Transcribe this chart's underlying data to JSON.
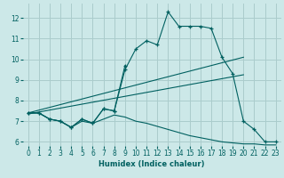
{
  "xlabel": "Humidex (Indice chaleur)",
  "bg_color": "#cce8e8",
  "grid_color": "#aacccc",
  "line_color": "#006060",
  "xlim": [
    -0.5,
    23.5
  ],
  "ylim": [
    5.8,
    12.7
  ],
  "xticks": [
    0,
    1,
    2,
    3,
    4,
    5,
    6,
    7,
    8,
    9,
    10,
    11,
    12,
    13,
    14,
    15,
    16,
    17,
    18,
    19,
    20,
    21,
    22,
    23
  ],
  "yticks": [
    6,
    7,
    8,
    9,
    10,
    11,
    12
  ],
  "curve1_x": [
    0,
    1,
    2,
    3,
    4,
    5,
    6,
    7,
    8,
    9,
    10,
    11,
    12,
    13,
    14,
    15,
    16,
    17,
    18,
    19,
    20,
    21,
    22,
    23
  ],
  "curve1_y": [
    7.4,
    7.4,
    7.1,
    7.0,
    6.7,
    7.1,
    6.9,
    7.6,
    7.5,
    9.5,
    10.5,
    10.9,
    10.7,
    12.3,
    11.6,
    11.6,
    11.6,
    11.5,
    10.1,
    9.3,
    7.0,
    6.6,
    6.0,
    6.0
  ],
  "curve2_x": [
    0,
    1,
    2,
    3,
    4,
    5,
    6,
    7,
    8,
    9
  ],
  "curve2_y": [
    7.4,
    7.4,
    7.1,
    7.0,
    6.7,
    7.1,
    6.9,
    7.6,
    7.5,
    9.7
  ],
  "line1_x": [
    0,
    20
  ],
  "line1_y": [
    7.4,
    10.1
  ],
  "line2_x": [
    0,
    20
  ],
  "line2_y": [
    7.35,
    9.25
  ],
  "lower_curve_x": [
    0,
    1,
    2,
    3,
    4,
    5,
    6,
    7,
    8,
    9,
    10,
    11,
    12,
    13,
    14,
    15,
    16,
    17,
    18,
    19,
    20,
    21,
    22,
    23
  ],
  "lower_curve_y": [
    7.4,
    7.4,
    7.1,
    7.0,
    6.7,
    7.0,
    6.9,
    7.1,
    7.3,
    7.2,
    7.0,
    6.9,
    6.75,
    6.6,
    6.45,
    6.3,
    6.2,
    6.1,
    6.0,
    5.95,
    5.9,
    5.9,
    5.85,
    5.85
  ],
  "tick_fontsize": 5.5,
  "xlabel_fontsize": 6.0
}
